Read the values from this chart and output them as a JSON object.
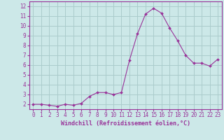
{
  "x": [
    0,
    1,
    2,
    3,
    4,
    5,
    6,
    7,
    8,
    9,
    10,
    11,
    12,
    13,
    14,
    15,
    16,
    17,
    18,
    19,
    20,
    21,
    22,
    23
  ],
  "y": [
    2.0,
    2.0,
    1.9,
    1.8,
    2.0,
    1.9,
    2.1,
    2.8,
    3.2,
    3.2,
    3.0,
    3.2,
    6.5,
    9.2,
    11.2,
    11.8,
    11.3,
    9.8,
    8.5,
    7.0,
    6.2,
    6.2,
    5.9,
    6.6
  ],
  "line_color": "#993399",
  "marker": "D",
  "marker_size": 2.0,
  "bg_color": "#cce8e8",
  "grid_color": "#aacccc",
  "xlabel": "Windchill (Refroidissement éolien,°C)",
  "xlabel_color": "#993399",
  "tick_color": "#993399",
  "xlim": [
    -0.5,
    23.5
  ],
  "ylim": [
    1.5,
    12.5
  ],
  "yticks": [
    2,
    3,
    4,
    5,
    6,
    7,
    8,
    9,
    10,
    11,
    12
  ],
  "xticks": [
    0,
    1,
    2,
    3,
    4,
    5,
    6,
    7,
    8,
    9,
    10,
    11,
    12,
    13,
    14,
    15,
    16,
    17,
    18,
    19,
    20,
    21,
    22,
    23
  ],
  "axis_line_color": "#993399",
  "tick_fontsize": 5.5,
  "xlabel_fontsize": 6.0
}
